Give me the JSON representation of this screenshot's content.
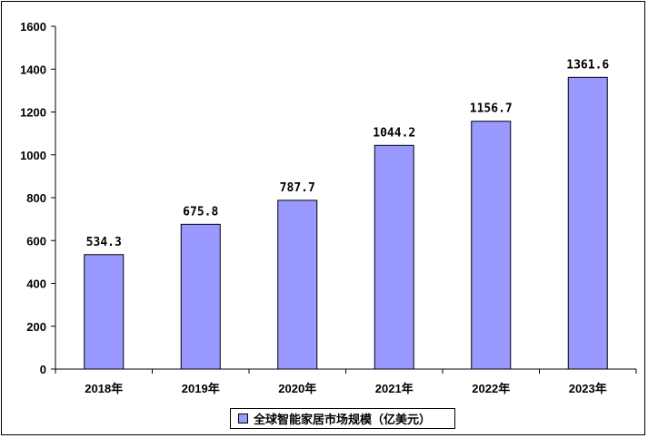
{
  "chart_data": {
    "type": "bar",
    "categories": [
      "2018年",
      "2019年",
      "2020年",
      "2021年",
      "2022年",
      "2023年"
    ],
    "series": [
      {
        "name": "全球智能家居市场规模（亿美元）",
        "values": [
          534.3,
          675.8,
          787.7,
          1044.2,
          1156.7,
          1361.6
        ],
        "value_labels": [
          "534.3",
          "675.8",
          "787.7",
          "1044.2",
          "1156.7",
          "1361.6"
        ]
      }
    ],
    "y_ticks": [
      "0",
      "200",
      "400",
      "600",
      "800",
      "1000",
      "1200",
      "1400",
      "1600"
    ],
    "ylim": [
      0,
      1600
    ],
    "grid": false,
    "legend": "bottom",
    "colors": {
      "bar": "#9999ff",
      "bar_border": "#000000"
    }
  }
}
